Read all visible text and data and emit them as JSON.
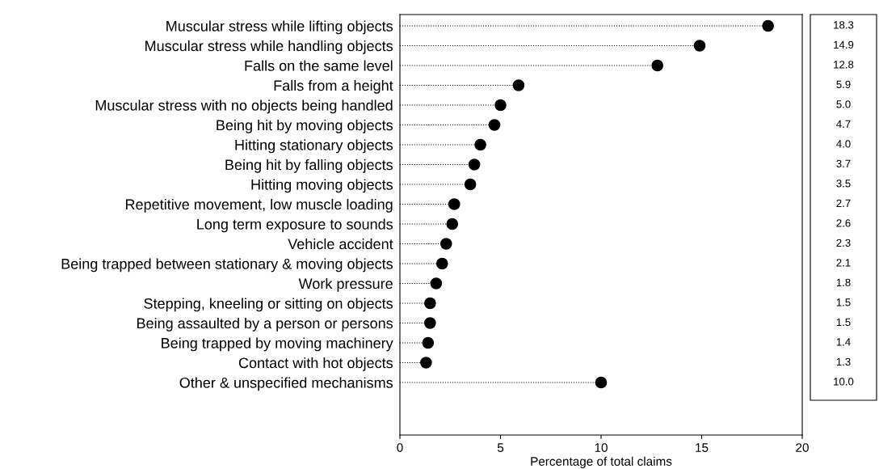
{
  "chart_data": {
    "type": "lollipop",
    "orientation": "horizontal",
    "xlabel": "Percentage of total claims",
    "categories": [
      "Muscular stress while lifting objects",
      "Muscular stress while handling objects",
      "Falls on the same level",
      "Falls from a height",
      "Muscular stress with no objects being handled",
      "Being hit by moving objects",
      "Hitting stationary objects",
      "Being hit by falling objects",
      "Hitting moving objects",
      "Repetitive movement, low muscle loading",
      "Long term exposure to sounds",
      "Vehicle accident",
      "Being trapped between stationary & moving objects",
      "Work pressure",
      "Stepping, kneeling or sitting on objects",
      "Being assaulted by a person or persons",
      "Being trapped by moving machinery",
      "Contact with hot objects",
      "Other & unspecified mechanisms"
    ],
    "values": [
      18.3,
      14.9,
      12.8,
      5.9,
      5.0,
      4.7,
      4.0,
      3.7,
      3.5,
      2.7,
      2.6,
      2.3,
      2.1,
      1.8,
      1.5,
      1.5,
      1.4,
      1.3,
      10.0
    ],
    "value_labels": [
      "18.3",
      "14.9",
      "12.8",
      "5.9",
      "5.0",
      "4.7",
      "4.0",
      "3.7",
      "3.5",
      "2.7",
      "2.6",
      "2.3",
      "2.1",
      "1.8",
      "1.5",
      "1.5",
      "1.4",
      "1.3",
      "10.0"
    ],
    "color": "#000000",
    "marker": "circle",
    "line_style": "dotted",
    "xlim": [
      0,
      20
    ],
    "xticks": [
      0,
      5,
      10,
      15,
      20
    ]
  }
}
